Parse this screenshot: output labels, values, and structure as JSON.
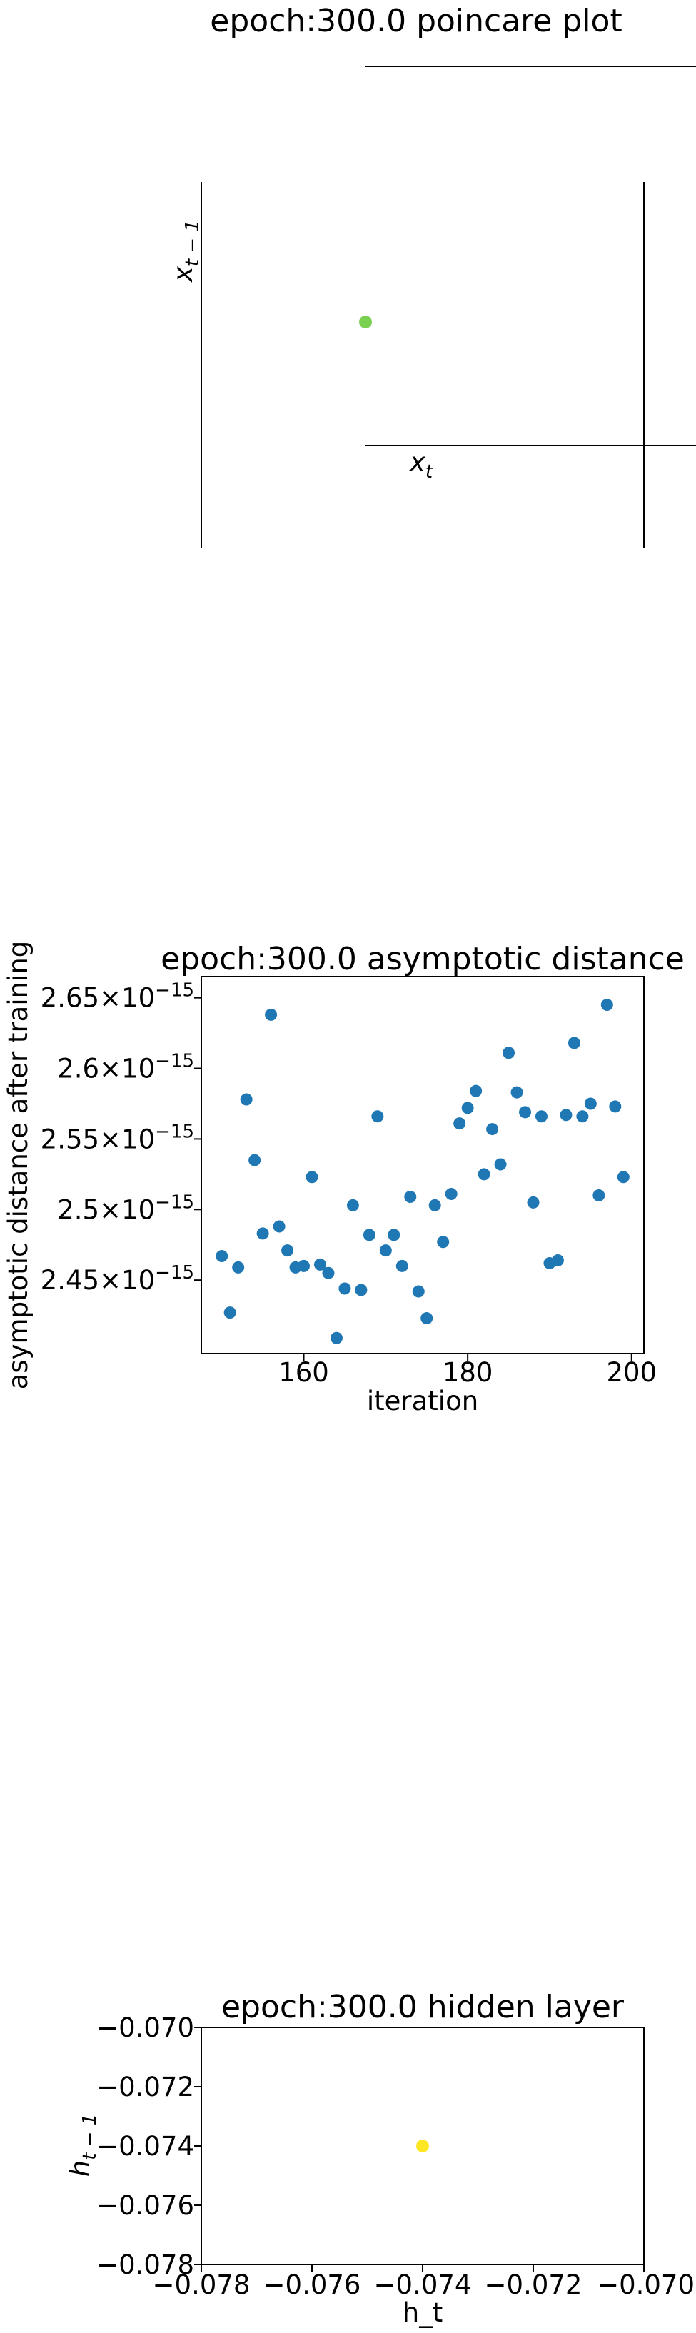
{
  "chart_data": [
    {
      "type": "scatter",
      "title": "epoch:300.0 poincare plot",
      "xlabel": "x_t",
      "ylabel": "x_{t-1}",
      "points": [
        {
          "x": 0,
          "y": 0
        }
      ],
      "point_color": "#7ad151",
      "grid": false,
      "spines": "centered"
    },
    {
      "type": "scatter",
      "title": "epoch:300.0 asymptotic distance",
      "xlabel": "iteration",
      "ylabel": "asymptotic distance after training",
      "xlim": [
        147.5,
        201.5
      ],
      "ylim": [
        2.398,
        2.665
      ],
      "y_scale_exponent": -15,
      "x_ticks": [
        160,
        180,
        200
      ],
      "y_ticks": [
        2.45,
        2.5,
        2.55,
        2.6,
        2.65
      ],
      "point_color": "#1f77b4",
      "grid": false,
      "x": [
        150,
        151,
        152,
        153,
        154,
        155,
        156,
        157,
        158,
        159,
        160,
        161,
        162,
        163,
        164,
        165,
        166,
        167,
        168,
        169,
        170,
        171,
        172,
        173,
        174,
        175,
        176,
        177,
        178,
        179,
        180,
        181,
        182,
        183,
        184,
        185,
        186,
        187,
        188,
        189,
        190,
        191,
        192,
        193,
        194,
        195,
        196,
        197,
        198,
        199
      ],
      "y": [
        2.467,
        2.427,
        2.459,
        2.578,
        2.535,
        2.483,
        2.638,
        2.488,
        2.471,
        2.459,
        2.46,
        2.523,
        2.461,
        2.455,
        2.409,
        2.444,
        2.503,
        2.443,
        2.482,
        2.566,
        2.471,
        2.482,
        2.46,
        2.509,
        2.442,
        2.423,
        2.503,
        2.477,
        2.511,
        2.561,
        2.572,
        2.584,
        2.525,
        2.557,
        2.532,
        2.611,
        2.583,
        2.569,
        2.505,
        2.566,
        2.462,
        2.464,
        2.567,
        2.618,
        2.566,
        2.575,
        2.51,
        2.645,
        2.573,
        2.523
      ]
    },
    {
      "type": "scatter",
      "title": "epoch:300.0 hidden layer",
      "xlabel": "h_t",
      "ylabel": "h_{t-1}",
      "xlim": [
        -0.078,
        -0.07
      ],
      "ylim": [
        -0.078,
        -0.07
      ],
      "x_ticks": [
        -0.078,
        -0.076,
        -0.074,
        -0.072,
        -0.07
      ],
      "y_ticks": [
        -0.07,
        -0.072,
        -0.074,
        -0.076,
        -0.078
      ],
      "x_tick_labels": [
        "−0.078",
        "−0.076",
        "−0.074",
        "−0.072",
        "−0.070"
      ],
      "y_tick_labels": [
        "−0.070",
        "−0.072",
        "−0.074",
        "−0.076",
        "−0.078"
      ],
      "points": [
        {
          "x": -0.074,
          "y": -0.074
        }
      ],
      "point_color": "#fde725",
      "grid": false
    }
  ]
}
